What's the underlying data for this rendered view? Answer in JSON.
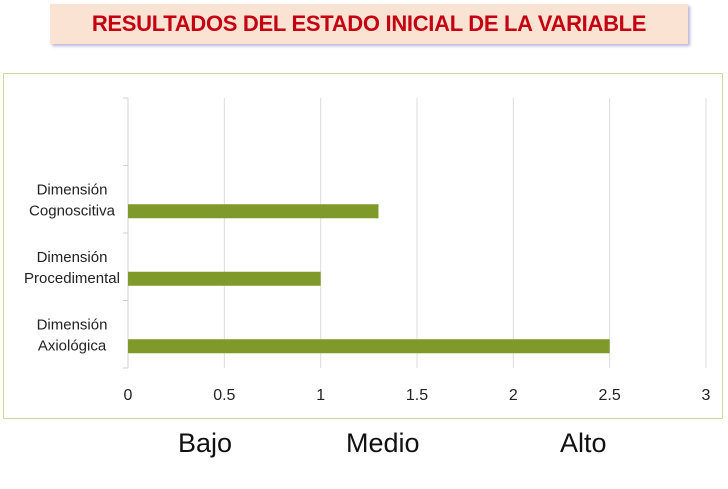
{
  "title": "RESULTADOS DEL ESTADO INICIAL DE LA VARIABLE",
  "chart_data": {
    "type": "bar",
    "orientation": "horizontal",
    "categories": [
      [
        "Dimensión",
        "Cognoscitiva"
      ],
      [
        "Dimensión",
        "Procedimental"
      ],
      [
        "Dimensión",
        "Axiológica"
      ]
    ],
    "values": [
      1.3,
      1.0,
      2.5
    ],
    "xlim": [
      0,
      3
    ],
    "xticks": [
      "0",
      "0.5",
      "1",
      "1.5",
      "2",
      "2.5",
      "3"
    ],
    "grid": true,
    "bar_color": "#7f9a2a",
    "level_labels": [
      "Bajo",
      "Medio",
      "Alto"
    ]
  }
}
